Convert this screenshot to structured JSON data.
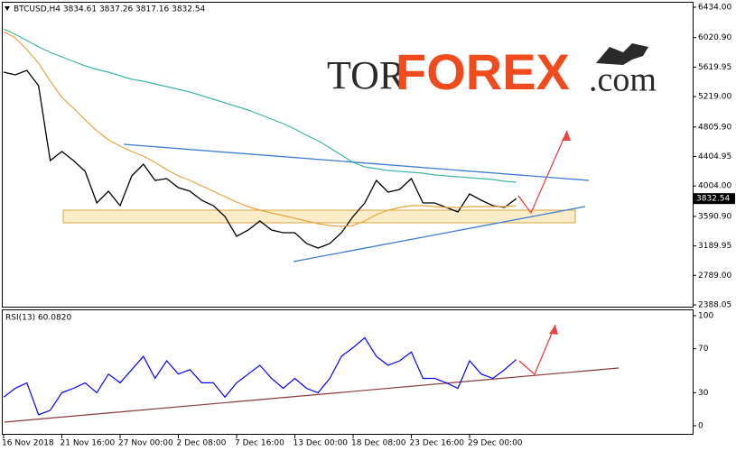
{
  "chart_data": [
    {
      "type": "line",
      "title": "BTCUSD,H4  3834.61 3837.26 3817.16 3832.54",
      "annotations": [
        "TOR",
        "FOREX",
        ".com"
      ],
      "categories": [
        "16 Nov 2018",
        null,
        null,
        null,
        null,
        "21 Nov 16:00",
        null,
        null,
        null,
        null,
        "27 Nov 00:00",
        null,
        null,
        null,
        null,
        "2 Dec 08:00",
        null,
        null,
        null,
        null,
        "7 Dec 16:00",
        null,
        null,
        null,
        null,
        "13 Dec 00:00",
        null,
        null,
        null,
        null,
        "18 Dec 08:00",
        null,
        null,
        null,
        null,
        "23 Dec 16:00",
        null,
        null,
        null,
        null,
        "29 Dec 00:00",
        null,
        null,
        null,
        null
      ],
      "series": [
        {
          "color": "#000000",
          "values": [
            5551,
            5514,
            5576,
            5367,
            4350,
            4472,
            4350,
            4203,
            3774,
            3933,
            3737,
            4141,
            4301,
            4080,
            4105,
            3982,
            3933,
            3810,
            3737,
            3590,
            3320,
            3406,
            3528,
            3406,
            3369,
            3369,
            3222,
            3161,
            3222,
            3369,
            3590,
            3774,
            4080,
            3921,
            3958,
            4105,
            3774,
            3774,
            3712,
            3651,
            3896,
            3810,
            3737,
            3712,
            3832.54
          ]
        },
        {
          "color": "#e8a33c",
          "values": [
            6103,
            6017,
            5858,
            5674,
            5429,
            5208,
            5061,
            4902,
            4754,
            4632,
            4546,
            4472,
            4411,
            4325,
            4227,
            4141,
            4080,
            4007,
            3933,
            3859,
            3786,
            3725,
            3676,
            3639,
            3602,
            3565,
            3528,
            3492,
            3467,
            3455,
            3467,
            3528,
            3614,
            3676,
            3712,
            3737,
            3737,
            3725,
            3712,
            3712,
            3725,
            3725,
            3725,
            3725,
            3737
          ]
        },
        {
          "color": "#3fb6a8",
          "values": [
            6140,
            6066,
            5980,
            5895,
            5821,
            5760,
            5698,
            5637,
            5588,
            5551,
            5502,
            5453,
            5429,
            5392,
            5355,
            5318,
            5282,
            5233,
            5184,
            5134,
            5085,
            5036,
            4975,
            4914,
            4852,
            4779,
            4693,
            4620,
            4522,
            4423,
            4325,
            4264,
            4239,
            4215,
            4203,
            4190,
            4178,
            4154,
            4141,
            4129,
            4117,
            4105,
            4092,
            4068,
            4056
          ]
        }
      ],
      "ylim": [
        2388.05,
        6434
      ],
      "yticks": [
        {
          "value": 6434,
          "label": "6434.00"
        },
        {
          "value": 6020.9,
          "label": "6020.90"
        },
        5619.95,
        {
          "value": 5219,
          "label": "5219.00"
        },
        {
          "value": 4805.9,
          "label": "4805.90"
        },
        4404.95,
        {
          "value": 4004,
          "label": "4004.00"
        },
        {
          "value": 3590.9,
          "label": "3590.90"
        },
        3189.95,
        {
          "value": 2789,
          "label": "2789.00"
        },
        2388.05
      ]
    },
    {
      "type": "line",
      "title": "RSI(13) 60.0820",
      "color": "#0000ff",
      "values": [
        26,
        34,
        39,
        10,
        14,
        30,
        34,
        39,
        30,
        47,
        39,
        51,
        63,
        43,
        59,
        47,
        51,
        39,
        39,
        26,
        39,
        47,
        55,
        43,
        34,
        43,
        34,
        30,
        43,
        63,
        71,
        80,
        63,
        55,
        59,
        67,
        43,
        43,
        39,
        34,
        59,
        47,
        43,
        51,
        60.082
      ],
      "ylim": [
        0,
        100
      ],
      "yticks": [
        0,
        30,
        70,
        100
      ]
    }
  ]
}
